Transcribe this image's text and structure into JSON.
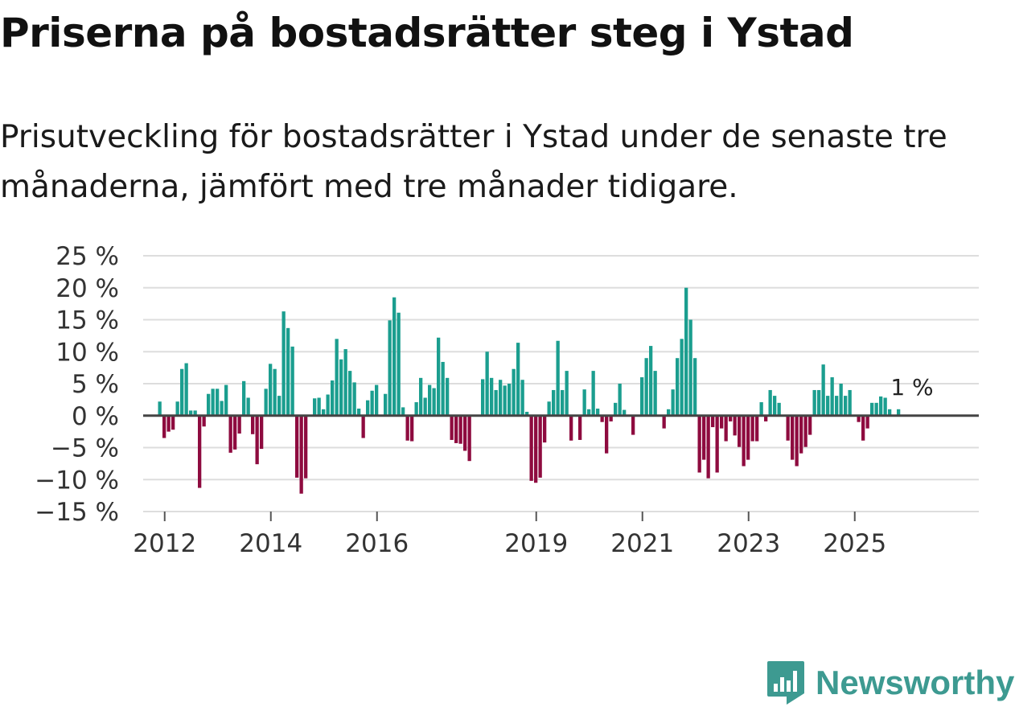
{
  "title": "Priserna på bostadsrätter steg i Ystad",
  "subtitle": "Prisutveckling för bostadsrätter i Ystad under de senaste tre månaderna, jämfört med tre månader tidigare.",
  "brand": {
    "name": "Newsworthy",
    "icon": "newsworthy-logo-icon"
  },
  "colors": {
    "positive": "#1b9e8f",
    "negative": "#8e0b3f",
    "grid": "#dddddd",
    "zero_line": "#444444",
    "brand": "#3d9a91"
  },
  "chart_data": {
    "type": "bar",
    "title": "Priserna på bostadsrätter steg i Ystad",
    "xlabel": "",
    "ylabel": "",
    "unit": "%",
    "ylim": [
      -15,
      25
    ],
    "y_ticks": [
      25,
      20,
      15,
      10,
      5,
      0,
      -5,
      -10,
      -15
    ],
    "y_tick_labels": [
      "25 %",
      "20 %",
      "15 %",
      "10 %",
      "5 %",
      "0 %",
      "−5 %",
      "−10 %",
      "−15 %"
    ],
    "x_ticks": [
      {
        "label": "2012",
        "index": 4
      },
      {
        "label": "2014",
        "index": 28
      },
      {
        "label": "2016",
        "index": 52
      },
      {
        "label": "2019",
        "index": 88
      },
      {
        "label": "2021",
        "index": 112
      },
      {
        "label": "2023",
        "index": 136
      },
      {
        "label": "2025",
        "index": 160
      }
    ],
    "start_index": 3,
    "values": [
      2.2,
      -3.5,
      -2.5,
      -2.2,
      2.2,
      7.3,
      8.2,
      0.8,
      0.8,
      -11.3,
      -1.7,
      3.4,
      4.2,
      4.2,
      2.3,
      4.8,
      -5.8,
      -5.3,
      -2.8,
      5.4,
      2.8,
      -2.9,
      -7.6,
      -5.2,
      4.2,
      8.1,
      7.3,
      3.1,
      16.3,
      13.7,
      10.8,
      -9.7,
      -12.2,
      -9.8,
      0,
      2.7,
      2.8,
      1.0,
      3.3,
      5.5,
      12.0,
      8.8,
      10.4,
      7.0,
      5.2,
      1.1,
      -3.5,
      2.4,
      3.9,
      4.8,
      0,
      3.4,
      14.9,
      18.5,
      16.1,
      1.3,
      -3.9,
      -4.0,
      2.1,
      5.9,
      2.8,
      4.8,
      4.3,
      12.2,
      8.4,
      5.9,
      -3.8,
      -4.3,
      -4.4,
      -5.5,
      -7.1,
      0,
      0,
      5.7,
      10.0,
      5.9,
      4.0,
      5.6,
      4.7,
      5.0,
      7.3,
      11.4,
      5.6,
      0.6,
      -10.2,
      -10.5,
      -9.7,
      -4.2,
      2.2,
      4.0,
      11.7,
      4.0,
      7.0,
      -3.9,
      0,
      -3.8,
      4.1,
      1.0,
      7.0,
      1.1,
      -1.0,
      -5.9,
      -0.9,
      2.0,
      5.0,
      0.9,
      0,
      -3.0,
      0,
      6.0,
      9.0,
      10.9,
      7.0,
      0,
      -2.0,
      1.0,
      4.1,
      9.0,
      12.0,
      20.0,
      15.0,
      9.0,
      -8.9,
      -6.9,
      -9.8,
      -1.8,
      -8.9,
      -2.0,
      -4.0,
      -0.9,
      -3.1,
      -4.9,
      -7.9,
      -6.9,
      -4.0,
      -4.0,
      2.1,
      -0.9,
      4.0,
      3.1,
      2.0,
      0,
      -3.9,
      -6.9,
      -7.9,
      -5.9,
      -4.9,
      -3.0,
      4.0,
      4.0,
      8.0,
      3.1,
      6.0,
      3.1,
      5.0,
      3.1,
      4.0,
      0,
      -1.0,
      -3.9,
      -2.0,
      2.0,
      2.0,
      3.0,
      2.8,
      1.0,
      0,
      1.0
    ],
    "annotations": [
      {
        "text": "1 %",
        "index": 174,
        "value": 1.0
      }
    ]
  }
}
